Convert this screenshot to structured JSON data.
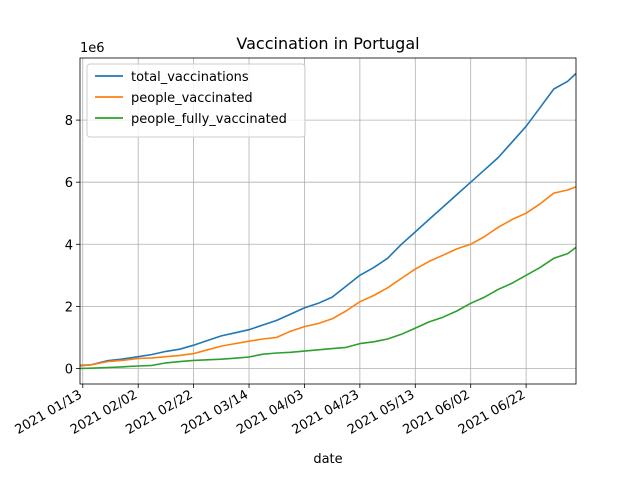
{
  "chart_data": {
    "type": "line",
    "title": "Vaccination in Portugal",
    "xlabel": "date",
    "ylabel": "",
    "y_scale_label": "1e6",
    "y_scale": 1000000,
    "ylim": [
      -0.5,
      10.0
    ],
    "yticks": [
      0,
      2,
      4,
      6,
      8
    ],
    "xlim": [
      "2021-01-12",
      "2021-07-10"
    ],
    "x_ticks": [
      "2021-01-13",
      "2021-02-02",
      "2021-02-22",
      "2021-03-14",
      "2021-04-03",
      "2021-04-23",
      "2021-05-13",
      "2021-06-02",
      "2021-06-22"
    ],
    "x_tick_labels": [
      "2021 01/13",
      "2021 02/02",
      "2021 02/22",
      "2021 03/14",
      "2021 04/03",
      "2021 04/23",
      "2021 05/13",
      "2021 06/02",
      "2021 06/22"
    ],
    "grid": true,
    "legend_position": "top-left",
    "x": [
      "2021-01-12",
      "2021-01-16",
      "2021-01-22",
      "2021-01-27",
      "2021-02-02",
      "2021-02-07",
      "2021-02-12",
      "2021-02-17",
      "2021-02-22",
      "2021-02-27",
      "2021-03-04",
      "2021-03-09",
      "2021-03-14",
      "2021-03-19",
      "2021-03-24",
      "2021-03-29",
      "2021-04-03",
      "2021-04-08",
      "2021-04-13",
      "2021-04-18",
      "2021-04-23",
      "2021-04-28",
      "2021-05-03",
      "2021-05-08",
      "2021-05-13",
      "2021-05-18",
      "2021-05-23",
      "2021-05-28",
      "2021-06-02",
      "2021-06-07",
      "2021-06-12",
      "2021-06-17",
      "2021-06-22",
      "2021-06-27",
      "2021-07-02",
      "2021-07-07",
      "2021-07-10"
    ],
    "series": [
      {
        "name": "total_vaccinations",
        "color": "#1f77b4",
        "values": [
          0.1,
          0.12,
          0.25,
          0.3,
          0.38,
          0.45,
          0.55,
          0.62,
          0.75,
          0.9,
          1.05,
          1.15,
          1.25,
          1.4,
          1.55,
          1.75,
          1.95,
          2.1,
          2.3,
          2.65,
          3.0,
          3.25,
          3.55,
          4.0,
          4.4,
          4.8,
          5.2,
          5.6,
          6.0,
          6.4,
          6.8,
          7.3,
          7.8,
          8.4,
          9.0,
          9.25,
          9.5
        ]
      },
      {
        "name": "people_vaccinated",
        "color": "#ff7f0e",
        "values": [
          0.08,
          0.12,
          0.22,
          0.26,
          0.32,
          0.34,
          0.38,
          0.42,
          0.48,
          0.6,
          0.72,
          0.8,
          0.88,
          0.95,
          1.0,
          1.2,
          1.35,
          1.45,
          1.6,
          1.85,
          2.15,
          2.35,
          2.6,
          2.9,
          3.2,
          3.45,
          3.65,
          3.85,
          4.0,
          4.25,
          4.55,
          4.8,
          5.0,
          5.3,
          5.65,
          5.75,
          5.85
        ]
      },
      {
        "name": "people_fully_vaccinated",
        "color": "#2ca02c",
        "values": [
          0.0,
          0.01,
          0.03,
          0.05,
          0.08,
          0.1,
          0.18,
          0.22,
          0.26,
          0.28,
          0.3,
          0.33,
          0.37,
          0.46,
          0.5,
          0.52,
          0.56,
          0.6,
          0.64,
          0.68,
          0.8,
          0.86,
          0.95,
          1.1,
          1.3,
          1.5,
          1.65,
          1.85,
          2.1,
          2.3,
          2.55,
          2.75,
          3.0,
          3.25,
          3.55,
          3.7,
          3.9
        ]
      }
    ]
  }
}
